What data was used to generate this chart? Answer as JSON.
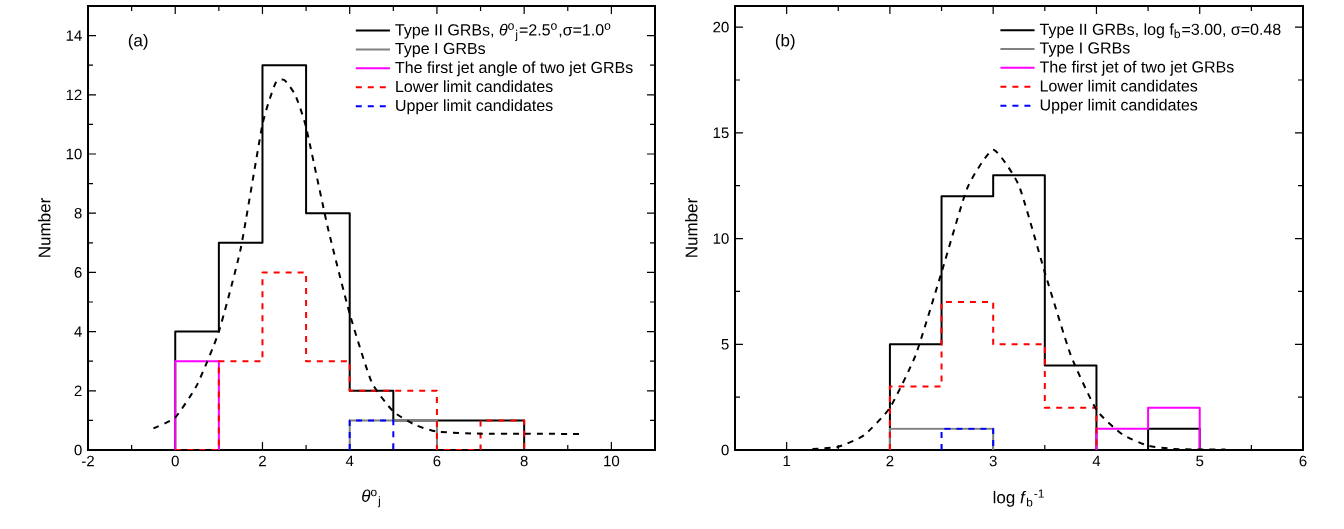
{
  "chart_data": [
    {
      "type": "histogram",
      "annotations": [
        "(a)"
      ],
      "xlabel": "*θ*$^{o}$$_{j}$",
      "ylabel": "Number",
      "xlim": [
        -2,
        11
      ],
      "ylim": [
        0,
        15
      ],
      "xticks": [
        -2,
        0,
        2,
        4,
        6,
        8,
        10
      ],
      "yticks": [
        0,
        2,
        4,
        6,
        8,
        10,
        12,
        14
      ],
      "legend": "top right",
      "series": [
        {
          "name": "Type II GRBs, *θ*$^{o}$$_{j}$=2.5$^{o}$,σ=1.0$^{o}$",
          "color": "#000000",
          "line_style": "solid",
          "bins": [
            0,
            1,
            2,
            3,
            4,
            5,
            6,
            7,
            8
          ],
          "values": [
            4,
            7,
            13,
            8,
            2,
            1,
            1,
            1
          ]
        },
        {
          "name": "Type I GRBs",
          "color": "#808080",
          "line_style": "solid",
          "bins": [
            4,
            5,
            6
          ],
          "values": [
            1,
            1
          ]
        },
        {
          "name": "The first jet angle of two jet GRBs",
          "color": "#ff00ff",
          "line_style": "solid",
          "bins": [
            0,
            1
          ],
          "values": [
            3
          ]
        },
        {
          "name": "Lower limit candidates",
          "color": "#ff0000",
          "line_style": "dashed",
          "bins": [
            0,
            1,
            2,
            3,
            4,
            5,
            6,
            7,
            8
          ],
          "values": [
            0,
            3,
            6,
            3,
            2,
            2,
            0,
            1
          ]
        },
        {
          "name": "Upper limit candidates",
          "color": "#0000ff",
          "line_style": "dashed",
          "bins": [
            4,
            5
          ],
          "values": [
            1
          ]
        },
        {
          "type": "line",
          "color": "#000000",
          "line_style": "dashed",
          "x": [
            -0.5,
            0,
            0.5,
            1,
            1.5,
            2,
            2.3,
            2.5,
            2.75,
            3,
            3.5,
            4,
            4.5,
            5,
            5.5,
            6,
            7,
            8,
            9.3
          ],
          "values": [
            0.73,
            1.1,
            2.2,
            4.0,
            6.8,
            11.0,
            12.4,
            12.5,
            12.0,
            10.9,
            7.5,
            4.6,
            2.3,
            1.3,
            0.85,
            0.62,
            0.55,
            0.55,
            0.54
          ]
        }
      ]
    },
    {
      "type": "histogram",
      "annotations": [
        "(b)"
      ],
      "xlabel": "log *f*$_{b}$$^{-1}$",
      "ylabel": "Number",
      "xlim": [
        0.5,
        6
      ],
      "ylim": [
        0,
        21
      ],
      "xticks": [
        1,
        2,
        3,
        4,
        5,
        6
      ],
      "yticks": [
        0,
        5,
        10,
        15,
        20
      ],
      "legend": "top right",
      "series": [
        {
          "name": "Type II GRBs, log f$_{b}$=3.00, σ=0.48",
          "color": "#000000",
          "line_style": "solid",
          "bins": [
            2,
            2.5,
            3,
            3.5,
            4,
            4.5,
            5
          ],
          "values": [
            5,
            12,
            13,
            4,
            0,
            1
          ]
        },
        {
          "name": "Type I GRBs",
          "color": "#808080",
          "line_style": "solid",
          "bins": [
            2,
            2.5,
            3
          ],
          "values": [
            1,
            1
          ]
        },
        {
          "name": "The first jet of two jet GRBs",
          "color": "#ff00ff",
          "line_style": "solid",
          "bins": [
            4,
            4.5,
            5
          ],
          "values": [
            1,
            2
          ]
        },
        {
          "name": "Lower limit candidates",
          "color": "#ff0000",
          "line_style": "dashed",
          "bins": [
            2,
            2.5,
            3,
            3.5,
            4
          ],
          "values": [
            3,
            7,
            5,
            2
          ]
        },
        {
          "name": "Upper limit candidates",
          "color": "#0000ff",
          "line_style": "dashed",
          "bins": [
            2.5,
            3
          ],
          "values": [
            1
          ]
        },
        {
          "type": "line",
          "color": "#000000",
          "line_style": "dashed",
          "x": [
            1.25,
            1.5,
            1.75,
            2,
            2.25,
            2.5,
            2.75,
            3,
            3.25,
            3.5,
            3.75,
            4,
            4.25,
            4.5,
            4.75,
            5,
            5.25
          ],
          "values": [
            0.05,
            0.15,
            0.7,
            2.0,
            4.5,
            8.4,
            12.4,
            14.2,
            12.5,
            8.4,
            4.5,
            1.9,
            0.74,
            0.2,
            0.05,
            0.02,
            0.02
          ]
        }
      ]
    }
  ]
}
